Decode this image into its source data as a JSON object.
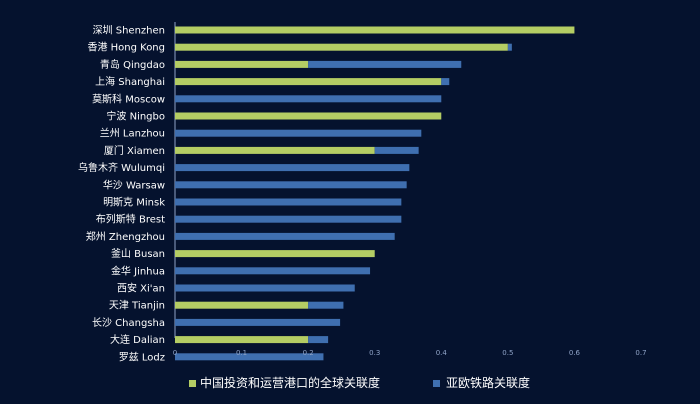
{
  "chart_data": {
    "type": "bar",
    "orientation": "horizontal",
    "stacked": true,
    "categories": [
      "深圳 Shenzhen",
      "香港 Hong Kong",
      "青岛 Qingdao",
      "上海 Shanghai",
      "莫斯科 Moscow",
      "宁波 Ningbo",
      "兰州 Lanzhou",
      "厦门 Xiamen",
      "乌鲁木齐 Wulumqi",
      "华沙 Warsaw",
      "明斯克 Minsk",
      "布列斯特 Brest",
      "郑州 Zhengzhou",
      "釜山 Busan",
      "金华 Jinhua",
      "西安 Xi'an",
      "天津 Tianjin",
      "长沙 Changsha",
      "大连 Dalian",
      "罗兹 Lodz"
    ],
    "series": [
      {
        "name": "中国投资和运营港口的全球关联度",
        "color": "#b4cd64",
        "values": [
          0.6,
          0.5,
          0.2,
          0.4,
          0,
          0.4,
          0,
          0.3,
          0,
          0,
          0,
          0,
          0,
          0.3,
          0,
          0,
          0.2,
          0,
          0.2,
          0
        ]
      },
      {
        "name": "亚欧铁路关联度",
        "color": "#3f6fb0",
        "values": [
          0,
          0.006,
          0.23,
          0.012,
          0.4,
          0,
          0.37,
          0.066,
          0.352,
          0.348,
          0.34,
          0.34,
          0.33,
          0,
          0.293,
          0.27,
          0.053,
          0.248,
          0.03,
          0.223
        ]
      }
    ],
    "x_ticks": [
      "0",
      "0.1",
      "0.2",
      "0.3",
      "0.4",
      "0.5",
      "0.6",
      "0.7"
    ],
    "xlim": [
      0,
      0.7
    ],
    "legend_position": "bottom",
    "background": "#05122e",
    "text_color": "#ffffff",
    "axis_color": "#8fa3c7"
  }
}
